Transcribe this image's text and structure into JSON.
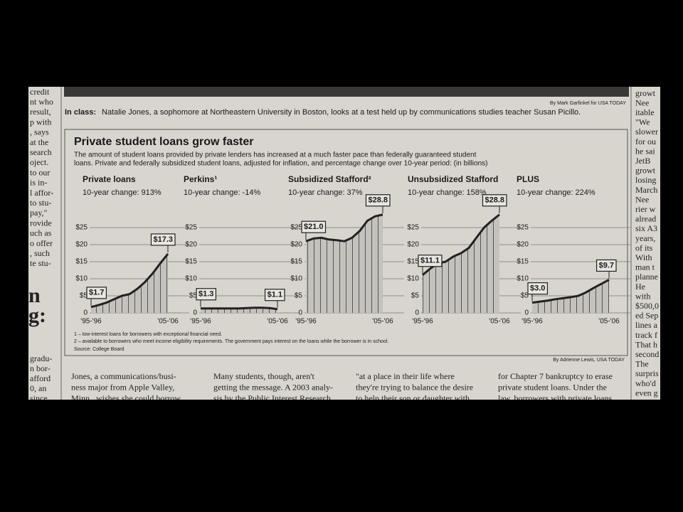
{
  "page": {
    "photo_credit": "By Mark Garfinkel for USA TODAY",
    "caption_label": "In class:",
    "caption_text": "Natalie Jones, a sophomore at Northeastern University in Boston, looks at a test held up by communications studies teacher Susan Picillo.",
    "graphic_title": "Private student loans grow faster",
    "graphic_intro": [
      "The amount of student loans provided by private lenders has increased at a much faster pace than federally guaranteed student",
      "loans. Private and federally subsidized student loans, adjusted for inflation, and percentage change over 10-year period: (in billions)"
    ],
    "footnotes": [
      "1 – low-interest loans for borrowers with exceptional financial need.",
      "2 – available to borrowers who meet income eligibility requirements. The government pays interest on the loans while the borrower is in school."
    ],
    "source": "Source: College Board",
    "graphic_credit": "By Adrienne Lewis, USA TODAY",
    "left_column": [
      "credit",
      "nt who",
      "result,",
      "p with",
      ", says",
      "at the",
      "search",
      "oject.",
      "to our",
      "is in-",
      "l affor-",
      "to stu-",
      "pay,\"",
      "rovide",
      "uch as",
      "o offer",
      ", such",
      "te stu-"
    ],
    "left_big": [
      "n",
      "g:"
    ],
    "left_bottom": [
      "gradu-",
      "n bor-",
      "afford",
      "0, an",
      "since"
    ],
    "right_column": [
      "growt",
      "Nee",
      "itable",
      "\"We",
      "slower",
      "for ou",
      "he sai",
      "JetB",
      "growt",
      "losing",
      "March",
      "Nee",
      "rier w",
      "alread",
      "six A3",
      "years,",
      "of its",
      "With",
      "man t",
      "planne",
      "He",
      "with",
      "$500,0",
      "ed Sep",
      "lines a",
      "track f",
      "That h",
      "second",
      "The",
      "surpris",
      "who'd",
      "even g"
    ],
    "article_columns": [
      [
        "Jones, a communications/busi-",
        "ness major from Apple Valley,",
        "Minn., wishes she could borrow"
      ],
      [
        "Many students, though, aren't",
        "getting the message. A 2003 analy-",
        "sis by the Public Interest Research"
      ],
      [
        "\"at a place in their life where",
        "they're trying to balance the desire",
        "to help their son or daughter with"
      ],
      [
        "for Chapter 7 bankruptcy to erase",
        "private student loans. Under the",
        "law, borrowers with private loans"
      ]
    ]
  },
  "chart_data": [
    {
      "type": "area",
      "title": "Private loans",
      "subtitle": "10-year change: 913%",
      "categories": [
        "'95-'96",
        null,
        null,
        null,
        null,
        null,
        null,
        null,
        null,
        null,
        "'05-'06"
      ],
      "values": [
        1.7,
        2.3,
        3,
        4,
        5,
        5.5,
        7,
        9,
        11.5,
        14.5,
        17.3
      ],
      "value_labels": [
        "$1.7",
        null,
        null,
        null,
        null,
        null,
        null,
        null,
        null,
        null,
        "$17.3"
      ],
      "color": "#222",
      "ylim": [
        0,
        30
      ],
      "yticks": [
        0,
        {
          "value": 5,
          "label": "$5"
        },
        {
          "value": 10,
          "label": "$10"
        },
        {
          "value": 15,
          "label": "$15"
        },
        {
          "value": 20,
          "label": "$20"
        },
        {
          "value": 25,
          "label": "$25"
        }
      ],
      "grid": true
    },
    {
      "type": "area",
      "title": "Perkins¹",
      "subtitle": "10-year change: -14%",
      "categories": [
        "'95-'96",
        null,
        null,
        null,
        null,
        null,
        null,
        null,
        null,
        null,
        "'05-'06"
      ],
      "values": [
        1.3,
        1.3,
        1.3,
        1.3,
        1.3,
        1.3,
        1.4,
        1.5,
        1.5,
        1.4,
        1.1
      ],
      "value_labels": [
        "$1.3",
        null,
        null,
        null,
        null,
        null,
        null,
        null,
        null,
        null,
        "$1.1"
      ],
      "color": "#222",
      "ylim": [
        0,
        30
      ],
      "yticks": [
        0,
        {
          "value": 5,
          "label": "$5"
        },
        {
          "value": 10,
          "label": "$10"
        },
        {
          "value": 15,
          "label": "$15"
        },
        {
          "value": 20,
          "label": "$20"
        },
        {
          "value": 25,
          "label": "$25"
        }
      ],
      "grid": true
    },
    {
      "type": "area",
      "title": "Subsidized Stafford²",
      "subtitle": "10-year change: 37%",
      "categories": [
        "'95-'96",
        null,
        null,
        null,
        null,
        null,
        null,
        null,
        null,
        null,
        "'05-'06"
      ],
      "values": [
        21.0,
        21.8,
        22,
        21.5,
        21.3,
        21,
        22,
        24,
        27,
        28.3,
        28.8
      ],
      "value_labels": [
        "$21.0",
        null,
        null,
        null,
        null,
        null,
        null,
        null,
        null,
        null,
        "$28.8"
      ],
      "color": "#222",
      "ylim": [
        0,
        30
      ],
      "yticks": [
        0,
        {
          "value": 5,
          "label": "$5"
        },
        {
          "value": 10,
          "label": "$10"
        },
        {
          "value": 15,
          "label": "$15"
        },
        {
          "value": 20,
          "label": "$20"
        },
        {
          "value": 25,
          "label": "$25"
        }
      ],
      "grid": true
    },
    {
      "type": "area",
      "title": "Unsubsidized Stafford",
      "subtitle": "10-year change: 158%",
      "categories": [
        "'95-'96",
        null,
        null,
        null,
        null,
        null,
        null,
        null,
        null,
        null,
        "'05-'06"
      ],
      "values": [
        11.1,
        13,
        14.5,
        15,
        16.5,
        17.5,
        19,
        22,
        25,
        27,
        28.8
      ],
      "value_labels": [
        "$11.1",
        null,
        null,
        null,
        null,
        null,
        null,
        null,
        null,
        null,
        "$28.8"
      ],
      "color": "#222",
      "ylim": [
        0,
        30
      ],
      "yticks": [
        0,
        {
          "value": 5,
          "label": "$5"
        },
        {
          "value": 10,
          "label": "$10"
        },
        {
          "value": 15,
          "label": "$15"
        },
        {
          "value": 20,
          "label": "$20"
        },
        {
          "value": 25,
          "label": "$25"
        }
      ],
      "grid": true
    },
    {
      "type": "area",
      "title": "PLUS",
      "subtitle": "10-year change: 224%",
      "categories": [
        "'95-'96",
        null,
        null,
        null,
        null,
        null,
        null,
        null,
        null,
        null,
        "'05-'06"
      ],
      "values": [
        3.0,
        3.3,
        3.6,
        4,
        4.3,
        4.6,
        5,
        6,
        7.3,
        8.5,
        9.7
      ],
      "value_labels": [
        "$3.0",
        null,
        null,
        null,
        null,
        null,
        null,
        null,
        null,
        null,
        "$9.7"
      ],
      "color": "#222",
      "ylim": [
        0,
        30
      ],
      "yticks": [
        0,
        {
          "value": 5,
          "label": "$5"
        },
        {
          "value": 10,
          "label": "$10"
        },
        {
          "value": 15,
          "label": "$15"
        },
        {
          "value": 20,
          "label": "$20"
        },
        {
          "value": 25,
          "label": "$25"
        }
      ],
      "grid": true
    }
  ]
}
